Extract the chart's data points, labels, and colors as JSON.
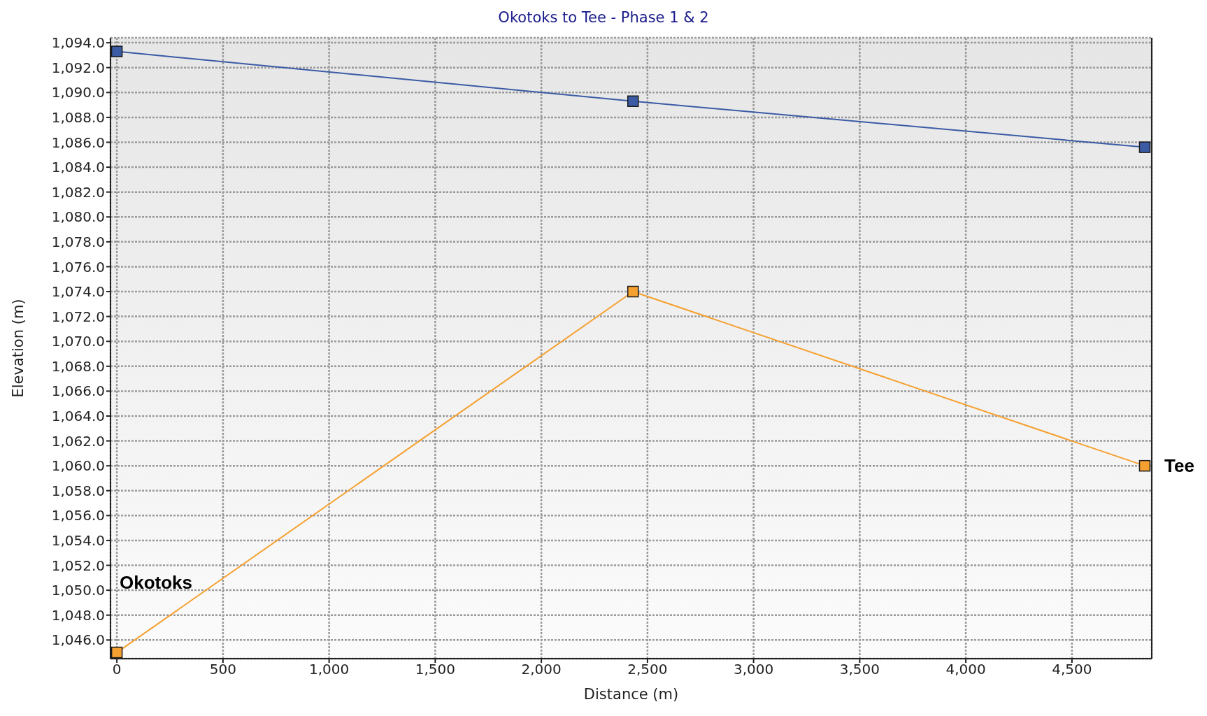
{
  "chart_data": {
    "type": "line",
    "title": "Okotoks to Tee - Phase 1 & 2",
    "xlabel": "Distance (m)",
    "ylabel": "Elevation (m)",
    "x": [
      0,
      2432,
      4843
    ],
    "series": [
      {
        "color": "#3b5ba5",
        "values": [
          1093.3,
          1089.3,
          1085.6
        ]
      },
      {
        "color": "#f5a030",
        "values": [
          1045.0,
          1074.0,
          1060.0
        ]
      }
    ],
    "xlim": [
      -30,
      4876
    ],
    "ylim": [
      1044.5,
      1094.4
    ],
    "xticks": [
      {
        "value": 0,
        "label": "0"
      },
      {
        "value": 500,
        "label": "500"
      },
      {
        "value": 1000,
        "label": "1,000"
      },
      {
        "value": 1500,
        "label": "1,500"
      },
      {
        "value": 2000,
        "label": "2,000"
      },
      {
        "value": 2500,
        "label": "2,500"
      },
      {
        "value": 3000,
        "label": "3,000"
      },
      {
        "value": 3500,
        "label": "3,500"
      },
      {
        "value": 4000,
        "label": "4,000"
      },
      {
        "value": 4500,
        "label": "4,500"
      }
    ],
    "yticks": [
      {
        "value": 1046,
        "label": "1,046.0"
      },
      {
        "value": 1048,
        "label": "1,048.0"
      },
      {
        "value": 1050,
        "label": "1,050.0"
      },
      {
        "value": 1052,
        "label": "1,052.0"
      },
      {
        "value": 1054,
        "label": "1,054.0"
      },
      {
        "value": 1056,
        "label": "1,056.0"
      },
      {
        "value": 1058,
        "label": "1,058.0"
      },
      {
        "value": 1060,
        "label": "1,060.0"
      },
      {
        "value": 1062,
        "label": "1,062.0"
      },
      {
        "value": 1064,
        "label": "1,064.0"
      },
      {
        "value": 1066,
        "label": "1,066.0"
      },
      {
        "value": 1068,
        "label": "1,068.0"
      },
      {
        "value": 1070,
        "label": "1,070.0"
      },
      {
        "value": 1072,
        "label": "1,072.0"
      },
      {
        "value": 1074,
        "label": "1,074.0"
      },
      {
        "value": 1076,
        "label": "1,076.0"
      },
      {
        "value": 1078,
        "label": "1,078.0"
      },
      {
        "value": 1080,
        "label": "1,080.0"
      },
      {
        "value": 1082,
        "label": "1,082.0"
      },
      {
        "value": 1084,
        "label": "1,084.0"
      },
      {
        "value": 1086,
        "label": "1,086.0"
      },
      {
        "value": 1088,
        "label": "1,088.0"
      },
      {
        "value": 1090,
        "label": "1,090.0"
      },
      {
        "value": 1092,
        "label": "1,092.0"
      },
      {
        "value": 1094,
        "label": "1,094.0"
      }
    ],
    "grid": true,
    "marker": "square",
    "line_style": "solid",
    "annotations": [
      "Okotoks",
      {
        "text": "Tee",
        "x": 4843,
        "y": 1060.0
      }
    ]
  }
}
